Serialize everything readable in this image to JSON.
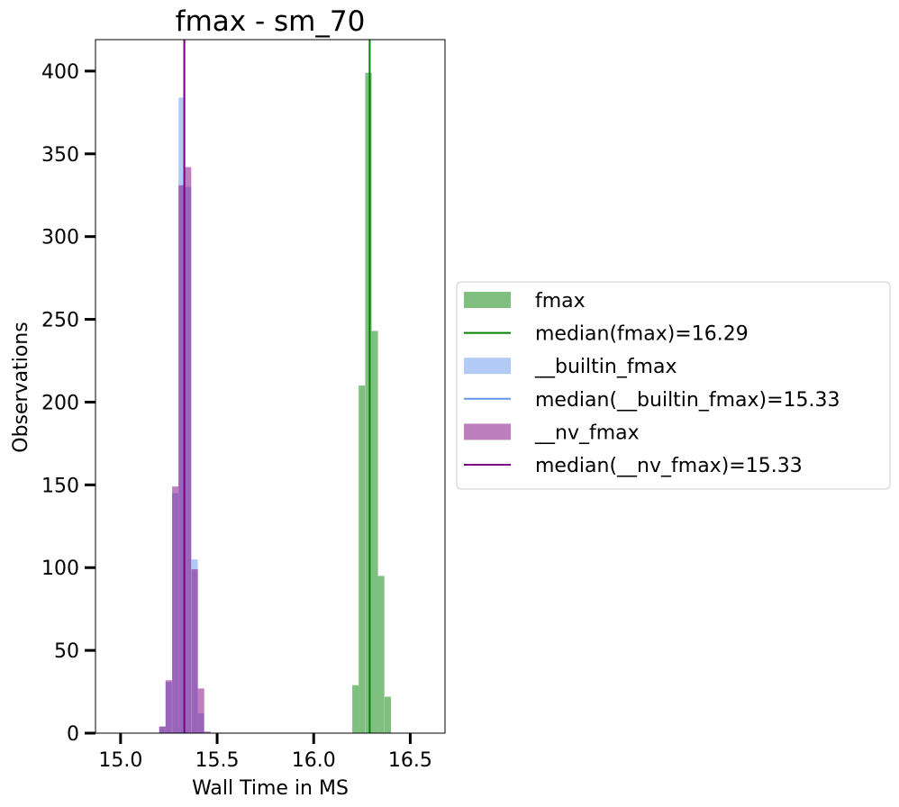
{
  "chart_data": {
    "type": "histogram",
    "title": "fmax - sm_70",
    "xlabel": "Wall Time in MS",
    "ylabel": "Observations",
    "xlim": [
      14.87,
      16.68
    ],
    "ylim": [
      0,
      419
    ],
    "x_ticks": [
      15.0,
      15.5,
      16.0,
      16.5
    ],
    "x_tick_labels": [
      "15.0",
      "15.5",
      "16.0",
      "16.5"
    ],
    "y_ticks": [
      0,
      50,
      100,
      150,
      200,
      250,
      300,
      350,
      400
    ],
    "y_tick_labels": [
      "0",
      "50",
      "100",
      "150",
      "200",
      "250",
      "300",
      "350",
      "400"
    ],
    "bin_width": 0.033,
    "legend_position": "center-left outside right",
    "series": [
      {
        "name": "fmax",
        "kind": "bars",
        "color": "#008000",
        "opacity": 0.5,
        "bins": [
          {
            "x": 16.2,
            "count": 29
          },
          {
            "x": 16.233,
            "count": 210
          },
          {
            "x": 16.267,
            "count": 399
          },
          {
            "x": 16.3,
            "count": 243
          },
          {
            "x": 16.333,
            "count": 95
          },
          {
            "x": 16.367,
            "count": 22
          }
        ]
      },
      {
        "name": "median(fmax)=16.29",
        "kind": "vline",
        "color": "#008000",
        "value": 16.29
      },
      {
        "name": "__builtin_fmax",
        "kind": "bars",
        "color": "#6495ED",
        "opacity": 0.5,
        "bins": [
          {
            "x": 15.2,
            "count": 4
          },
          {
            "x": 15.233,
            "count": 31
          },
          {
            "x": 15.267,
            "count": 145
          },
          {
            "x": 15.3,
            "count": 384
          },
          {
            "x": 15.333,
            "count": 330
          },
          {
            "x": 15.367,
            "count": 105
          },
          {
            "x": 15.4,
            "count": 12
          }
        ]
      },
      {
        "name": "median(__builtin_fmax)=15.33",
        "kind": "vline",
        "color": "#6495ED",
        "value": 15.33
      },
      {
        "name": "__nv_fmax",
        "kind": "bars",
        "color": "#800080",
        "opacity": 0.5,
        "bins": [
          {
            "x": 15.2,
            "count": 4
          },
          {
            "x": 15.233,
            "count": 32
          },
          {
            "x": 15.267,
            "count": 149
          },
          {
            "x": 15.3,
            "count": 331
          },
          {
            "x": 15.333,
            "count": 342
          },
          {
            "x": 15.367,
            "count": 99
          },
          {
            "x": 15.4,
            "count": 27
          },
          {
            "x": 15.433,
            "count": 1
          }
        ]
      },
      {
        "name": "median(__nv_fmax)=15.33",
        "kind": "vline",
        "color": "#800080",
        "value": 15.33
      }
    ]
  }
}
